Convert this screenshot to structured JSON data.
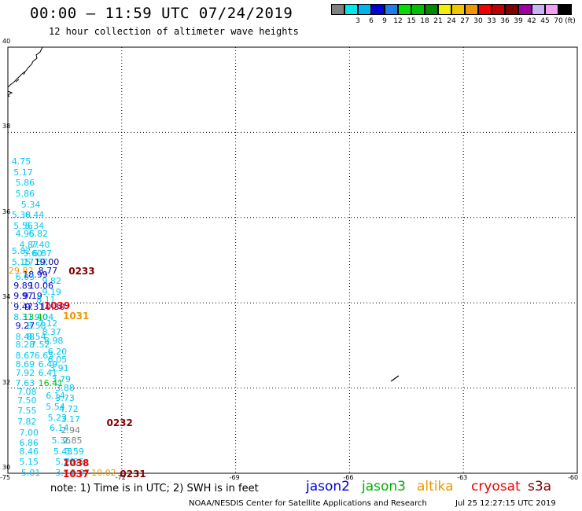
{
  "header": {
    "title": "00:00 – 11:59 UTC 07/24/2019",
    "subtitle": "12 hour collection of altimeter wave heights"
  },
  "legend": {
    "unit": "(ft)",
    "items": [
      {
        "label": "",
        "color": "#808080"
      },
      {
        "label": "3",
        "color": "#00e8e8"
      },
      {
        "label": "6",
        "color": "#00b4f0"
      },
      {
        "label": "9",
        "color": "#0000d8"
      },
      {
        "label": "12",
        "color": "#1e7ee8"
      },
      {
        "label": "15",
        "color": "#00e000"
      },
      {
        "label": "18",
        "color": "#00c000"
      },
      {
        "label": "21",
        "color": "#008800"
      },
      {
        "label": "24",
        "color": "#f0f000"
      },
      {
        "label": "27",
        "color": "#f0c800"
      },
      {
        "label": "30",
        "color": "#f09600"
      },
      {
        "label": "33",
        "color": "#f00000"
      },
      {
        "label": "36",
        "color": "#c00000"
      },
      {
        "label": "39",
        "color": "#800000"
      },
      {
        "label": "42",
        "color": "#a000a0"
      },
      {
        "label": "45",
        "color": "#c8b4f0"
      },
      {
        "label": "70",
        "color": "#f0a0f0"
      },
      {
        "label": "",
        "color": "#000000"
      }
    ]
  },
  "map": {
    "lon_range": [
      -75,
      -60
    ],
    "lat_range": [
      30,
      40
    ],
    "x_ticks": [
      "-75",
      "-72",
      "-69",
      "-66",
      "-63",
      "-60"
    ],
    "y_ticks": [
      "40",
      "38",
      "36",
      "34",
      "32",
      "30"
    ],
    "observations": [
      {
        "lon": -74.9,
        "lat": 37.3,
        "v": "4.75",
        "c": "#00c8f0"
      },
      {
        "lon": -74.85,
        "lat": 37.05,
        "v": "5.17",
        "c": "#00c8f0"
      },
      {
        "lon": -74.8,
        "lat": 36.8,
        "v": "5.86",
        "c": "#00c8f0"
      },
      {
        "lon": -74.8,
        "lat": 36.55,
        "v": "5.86",
        "c": "#00c8f0"
      },
      {
        "lon": -74.65,
        "lat": 36.3,
        "v": "5.34",
        "c": "#00c8f0"
      },
      {
        "lon": -74.9,
        "lat": 36.05,
        "v": "5.38",
        "c": "#00c8f0"
      },
      {
        "lon": -74.55,
        "lat": 36.05,
        "v": "6.44",
        "c": "#00c8f0"
      },
      {
        "lon": -74.85,
        "lat": 35.8,
        "v": "5.56",
        "c": "#00c8f0"
      },
      {
        "lon": -74.55,
        "lat": 35.8,
        "v": "5.34",
        "c": "#00c8f0"
      },
      {
        "lon": -74.8,
        "lat": 35.6,
        "v": "4.95",
        "c": "#00c8f0"
      },
      {
        "lon": -74.45,
        "lat": 35.6,
        "v": "6.82",
        "c": "#00c8f0"
      },
      {
        "lon": -74.7,
        "lat": 35.35,
        "v": "4.87",
        "c": "#00c8f0"
      },
      {
        "lon": -74.4,
        "lat": 35.35,
        "v": "7.40",
        "c": "#00c8f0"
      },
      {
        "lon": -74.9,
        "lat": 35.2,
        "v": "5.82",
        "c": "#00c8f0"
      },
      {
        "lon": -74.6,
        "lat": 35.15,
        "v": "5.60",
        "c": "#00c8f0"
      },
      {
        "lon": -74.35,
        "lat": 35.15,
        "v": "6.87",
        "c": "#00c8f0"
      },
      {
        "lon": -74.9,
        "lat": 34.95,
        "v": "5.15",
        "c": "#00c8f0"
      },
      {
        "lon": -74.6,
        "lat": 34.95,
        "v": "17.57",
        "c": "#00c8f0"
      },
      {
        "lon": -74.3,
        "lat": 34.95,
        "v": "19.00",
        "c": "#000090"
      },
      {
        "lon": -75.0,
        "lat": 34.75,
        "v": "29.82",
        "c": "#f09600"
      },
      {
        "lon": -74.6,
        "lat": 34.65,
        "v": "18.99",
        "c": "#0000c8"
      },
      {
        "lon": -74.2,
        "lat": 34.75,
        "v": "8.77",
        "c": "#0000c8"
      },
      {
        "lon": -74.8,
        "lat": 34.6,
        "v": "6.03",
        "c": "#00c8f0"
      },
      {
        "lon": -74.1,
        "lat": 34.5,
        "v": "9.82",
        "c": "#00c8f0"
      },
      {
        "lon": -74.85,
        "lat": 34.4,
        "v": "9.89",
        "c": "#0000c8"
      },
      {
        "lon": -74.45,
        "lat": 34.4,
        "v": "10.06",
        "c": "#0000c8"
      },
      {
        "lon": -74.1,
        "lat": 34.25,
        "v": "9.19",
        "c": "#00c8f0"
      },
      {
        "lon": -74.85,
        "lat": 34.15,
        "v": "9.97",
        "c": "#0000c8"
      },
      {
        "lon": -74.6,
        "lat": 34.15,
        "v": "9.19",
        "c": "#0000c8"
      },
      {
        "lon": -74.25,
        "lat": 34.05,
        "v": "8.11",
        "c": "#00c8f0"
      },
      {
        "lon": -74.85,
        "lat": 33.9,
        "v": "9.47",
        "c": "#0000c8"
      },
      {
        "lon": -74.55,
        "lat": 33.9,
        "v": "9.31",
        "c": "#0000c8"
      },
      {
        "lon": -74.15,
        "lat": 33.9,
        "v": "10.30",
        "c": "#0000c8"
      },
      {
        "lon": -74.85,
        "lat": 33.65,
        "v": "8.31",
        "c": "#00c8f0"
      },
      {
        "lon": -74.6,
        "lat": 33.65,
        "v": "13.40",
        "c": "#00c000"
      },
      {
        "lon": -74.3,
        "lat": 33.65,
        "v": "9.04",
        "c": "#00c8f0"
      },
      {
        "lon": -74.2,
        "lat": 33.5,
        "v": "7.12",
        "c": "#00c8f0"
      },
      {
        "lon": -74.8,
        "lat": 33.45,
        "v": "9.27",
        "c": "#0000c8"
      },
      {
        "lon": -74.5,
        "lat": 33.45,
        "v": "8.58",
        "c": "#00c8f0"
      },
      {
        "lon": -74.1,
        "lat": 33.3,
        "v": "8.37",
        "c": "#00c8f0"
      },
      {
        "lon": -74.8,
        "lat": 33.2,
        "v": "8.48",
        "c": "#00c8f0"
      },
      {
        "lon": -74.5,
        "lat": 33.2,
        "v": "8.54",
        "c": "#00c8f0"
      },
      {
        "lon": -74.05,
        "lat": 33.1,
        "v": "8.98",
        "c": "#00c8f0"
      },
      {
        "lon": -74.8,
        "lat": 33.0,
        "v": "8.28",
        "c": "#00c8f0"
      },
      {
        "lon": -74.4,
        "lat": 33.0,
        "v": "7.52",
        "c": "#00c8f0"
      },
      {
        "lon": -73.95,
        "lat": 32.85,
        "v": "6.20",
        "c": "#00c8f0"
      },
      {
        "lon": -74.8,
        "lat": 32.75,
        "v": "8.67",
        "c": "#00c8f0"
      },
      {
        "lon": -74.3,
        "lat": 32.75,
        "v": "6.65",
        "c": "#00c8f0"
      },
      {
        "lon": -73.95,
        "lat": 32.65,
        "v": "6.05",
        "c": "#00c8f0"
      },
      {
        "lon": -74.8,
        "lat": 32.55,
        "v": "8.69",
        "c": "#00c8f0"
      },
      {
        "lon": -74.2,
        "lat": 32.55,
        "v": "6.49",
        "c": "#00c8f0"
      },
      {
        "lon": -73.9,
        "lat": 32.45,
        "v": "3.91",
        "c": "#00c8f0"
      },
      {
        "lon": -74.8,
        "lat": 32.35,
        "v": "7.92",
        "c": "#00c8f0"
      },
      {
        "lon": -74.2,
        "lat": 32.35,
        "v": "6.41",
        "c": "#00c8f0"
      },
      {
        "lon": -73.85,
        "lat": 32.2,
        "v": "3.79",
        "c": "#00c8f0"
      },
      {
        "lon": -74.8,
        "lat": 32.1,
        "v": "7.63",
        "c": "#00c8f0"
      },
      {
        "lon": -74.2,
        "lat": 32.1,
        "v": "16.41",
        "c": "#00c000"
      },
      {
        "lon": -73.75,
        "lat": 32.0,
        "v": "3.88",
        "c": "#00c8f0"
      },
      {
        "lon": -74.75,
        "lat": 31.9,
        "v": "7.08",
        "c": "#00c8f0"
      },
      {
        "lon": -74.0,
        "lat": 31.8,
        "v": "6.14",
        "c": "#00c8f0"
      },
      {
        "lon": -73.75,
        "lat": 31.75,
        "v": "3.73",
        "c": "#00c8f0"
      },
      {
        "lon": -74.75,
        "lat": 31.7,
        "v": "7.50",
        "c": "#00c8f0"
      },
      {
        "lon": -74.0,
        "lat": 31.55,
        "v": "5.54",
        "c": "#00c8f0"
      },
      {
        "lon": -73.65,
        "lat": 31.5,
        "v": "4.72",
        "c": "#00c8f0"
      },
      {
        "lon": -74.75,
        "lat": 31.45,
        "v": "7.55",
        "c": "#00c8f0"
      },
      {
        "lon": -73.95,
        "lat": 31.3,
        "v": "5.23",
        "c": "#00c8f0"
      },
      {
        "lon": -73.6,
        "lat": 31.25,
        "v": "3.17",
        "c": "#00c8f0"
      },
      {
        "lon": -74.75,
        "lat": 31.2,
        "v": "7.82",
        "c": "#00c8f0"
      },
      {
        "lon": -73.9,
        "lat": 31.05,
        "v": "6.14",
        "c": "#00c8f0"
      },
      {
        "lon": -73.6,
        "lat": 31.0,
        "v": "2.94",
        "c": "#808080"
      },
      {
        "lon": -74.7,
        "lat": 30.95,
        "v": "7.00",
        "c": "#00c8f0"
      },
      {
        "lon": -73.85,
        "lat": 30.75,
        "v": "5.36",
        "c": "#00c8f0"
      },
      {
        "lon": -73.55,
        "lat": 30.75,
        "v": "2.85",
        "c": "#808080"
      },
      {
        "lon": -74.7,
        "lat": 30.7,
        "v": "6.86",
        "c": "#00c8f0"
      },
      {
        "lon": -73.8,
        "lat": 30.5,
        "v": "5.43",
        "c": "#00c8f0"
      },
      {
        "lon": -73.5,
        "lat": 30.5,
        "v": "3.59",
        "c": "#00c8f0"
      },
      {
        "lon": -74.7,
        "lat": 30.5,
        "v": "8.46",
        "c": "#00c8f0"
      },
      {
        "lon": -74.7,
        "lat": 30.25,
        "v": "5.15",
        "c": "#00c8f0"
      },
      {
        "lon": -73.75,
        "lat": 30.25,
        "v": "5.26",
        "c": "#00c8f0"
      },
      {
        "lon": -73.5,
        "lat": 30.25,
        "v": "2.85",
        "c": "#00c8f0"
      },
      {
        "lon": -74.65,
        "lat": 30.0,
        "v": "5.01",
        "c": "#00c8f0"
      },
      {
        "lon": -73.75,
        "lat": 30.0,
        "v": "3.74",
        "c": "#00c8f0"
      },
      {
        "lon": -73.35,
        "lat": 30.0,
        "v": "4.07",
        "c": "#00c8f0"
      },
      {
        "lon": -72.8,
        "lat": 30.0,
        "v": "10.02",
        "c": "#f09600"
      }
    ],
    "track_labels": [
      {
        "lon": -73.4,
        "lat": 34.7,
        "v": "0233",
        "c": "#800000"
      },
      {
        "lon": -74.05,
        "lat": 33.9,
        "v": "1039",
        "c": "#f00000"
      },
      {
        "lon": -73.55,
        "lat": 33.65,
        "v": "1031",
        "c": "#f09600"
      },
      {
        "lon": -72.4,
        "lat": 31.15,
        "v": "0232",
        "c": "#800000"
      },
      {
        "lon": -73.55,
        "lat": 30.2,
        "v": "1038",
        "c": "#f00000"
      },
      {
        "lon": -73.55,
        "lat": 29.95,
        "v": "1037",
        "c": "#f00000"
      },
      {
        "lon": -72.05,
        "lat": 29.95,
        "v": "0231",
        "c": "#800000"
      }
    ]
  },
  "notes": {
    "text": "note:  1) Time is in UTC;  2) SWH is in feet"
  },
  "satellites": [
    {
      "name": "jason2",
      "color": "#0000e0"
    },
    {
      "name": "jason3",
      "color": "#00b000"
    },
    {
      "name": "altika",
      "color": "#f09600"
    },
    {
      "name": "cryosat",
      "color": "#f00000"
    },
    {
      "name": "s3a",
      "color": "#800000"
    }
  ],
  "footer": {
    "credit": "NOAA/NESDIS Center for Satellite Applications and Research",
    "timestamp": "Jul 25 12:27:15 UTC 2019"
  }
}
